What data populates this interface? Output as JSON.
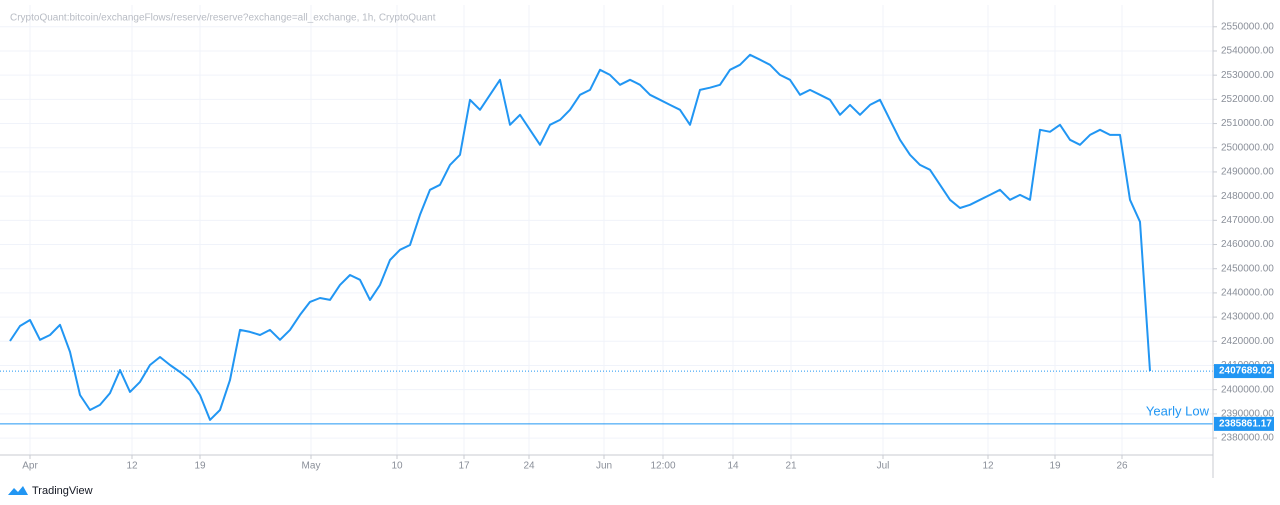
{
  "chart_data": {
    "type": "line",
    "title": "CryptoQuant:bitcoin/exchangeFlows/reserve/reserve?exchange=all_exchange, 1h, CryptoQuant",
    "brand": "TradingView",
    "color": "#2196f3",
    "values": [
      2420100,
      2426300,
      2428800,
      2420600,
      2422600,
      2426800,
      2415600,
      2397800,
      2391600,
      2393700,
      2398600,
      2408100,
      2399100,
      2403200,
      2410200,
      2413500,
      2410200,
      2407300,
      2404000,
      2397800,
      2387500,
      2391600,
      2404000,
      2424700,
      2423900,
      2422600,
      2424700,
      2420600,
      2424700,
      2430900,
      2436300,
      2437900,
      2437100,
      2443300,
      2447400,
      2445400,
      2437100,
      2443300,
      2453600,
      2457800,
      2459800,
      2472300,
      2482600,
      2484700,
      2492900,
      2497100,
      2519800,
      2515700,
      2521900,
      2528100,
      2509500,
      2513600,
      2507400,
      2501200,
      2509500,
      2511500,
      2515700,
      2521900,
      2523900,
      2532200,
      2530100,
      2526000,
      2528100,
      2526000,
      2521900,
      2519800,
      2517700,
      2515700,
      2509500,
      2523900,
      2524800,
      2526000,
      2532200,
      2534300,
      2538400,
      2536400,
      2534300,
      2530100,
      2528100,
      2521900,
      2523900,
      2521900,
      2519800,
      2513600,
      2517700,
      2513600,
      2517700,
      2519800,
      2511500,
      2503300,
      2497100,
      2492900,
      2490900,
      2484700,
      2478500,
      2475100,
      2476400,
      2478500,
      2480500,
      2482600,
      2478500,
      2480500,
      2478500,
      2507400,
      2506600,
      2509500,
      2503300,
      2501200,
      2505300,
      2507400,
      2505300,
      2505300,
      2478500,
      2469400,
      2407689.02
    ],
    "xlim": [
      -1,
      120.3
    ],
    "xticks": [
      {
        "value": 2,
        "label": "Apr"
      },
      {
        "value": 12.2,
        "label": "12"
      },
      {
        "value": 19,
        "label": "19"
      },
      {
        "value": 30.1,
        "label": "May"
      },
      {
        "value": 38.7,
        "label": "10"
      },
      {
        "value": 45.4,
        "label": "17"
      },
      {
        "value": 51.9,
        "label": "24"
      },
      {
        "value": 59.4,
        "label": "Jun"
      },
      {
        "value": 65.3,
        "label": "12:00"
      },
      {
        "value": 72.3,
        "label": "14"
      },
      {
        "value": 78.1,
        "label": "21"
      },
      {
        "value": 87.3,
        "label": "Jul"
      },
      {
        "value": 97.8,
        "label": "12"
      },
      {
        "value": 104.5,
        "label": "19"
      },
      {
        "value": 111.2,
        "label": "26"
      }
    ],
    "ylim": [
      2373000,
      2559000
    ],
    "yticks": [
      {
        "value": 2380000,
        "label": "2380000.00"
      },
      {
        "value": 2390000,
        "label": "2390000.00"
      },
      {
        "value": 2400000,
        "label": "2400000.00"
      },
      {
        "value": 2410000,
        "label": "2410000.00"
      },
      {
        "value": 2420000,
        "label": "2420000.00"
      },
      {
        "value": 2430000,
        "label": "2430000.00"
      },
      {
        "value": 2440000,
        "label": "2440000.00"
      },
      {
        "value": 2450000,
        "label": "2450000.00"
      },
      {
        "value": 2460000,
        "label": "2460000.00"
      },
      {
        "value": 2470000,
        "label": "2470000.00"
      },
      {
        "value": 2480000,
        "label": "2480000.00"
      },
      {
        "value": 2490000,
        "label": "2490000.00"
      },
      {
        "value": 2500000,
        "label": "2500000.00"
      },
      {
        "value": 2510000,
        "label": "2510000.00"
      },
      {
        "value": 2520000,
        "label": "2520000.00"
      },
      {
        "value": 2530000,
        "label": "2530000.00"
      },
      {
        "value": 2540000,
        "label": "2540000.00"
      },
      {
        "value": 2550000,
        "label": "2550000.00"
      }
    ],
    "grid": true,
    "price_lines": [
      {
        "value": 2407689.02,
        "style": "dotted"
      },
      {
        "value": 2385861.17,
        "label": "Yearly Low",
        "style": "solid"
      }
    ]
  }
}
